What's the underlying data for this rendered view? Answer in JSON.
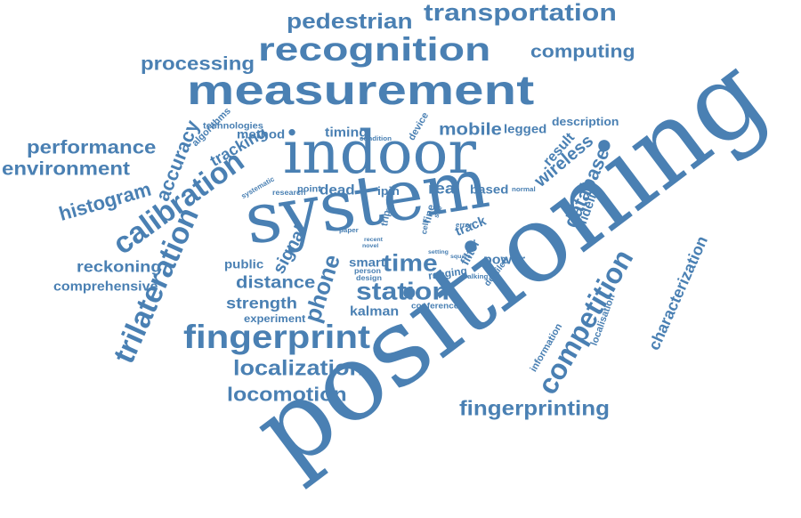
{
  "color": "#4a80b3",
  "words": [
    "positioning",
    "system",
    "indoor",
    "measurement",
    "recognition",
    "transportation",
    "pedestrian",
    "computing",
    "processing",
    "performance",
    "environment",
    "histogram",
    "accuracy",
    "calibration",
    "trilateration",
    "reckoning",
    "comprehensive",
    "fingerprint",
    "localization",
    "locomotion",
    "fingerprinting",
    "station",
    "time",
    "distance",
    "strength",
    "kalman",
    "phone",
    "signal",
    "public",
    "experiment",
    "competition",
    "characterization",
    "database",
    "wireless",
    "fidelity",
    "result",
    "description",
    "legged",
    "mobile",
    "timing",
    "method",
    "tracking",
    "algorithms",
    "technologies",
    "device",
    "condition",
    "dead",
    "point",
    "research",
    "systematic",
    "ipin",
    "real",
    "based",
    "normal",
    "smart",
    "power",
    "filter",
    "track",
    "ranging",
    "walking",
    "detailed",
    "conference",
    "information",
    "localisation",
    "design",
    "person",
    "paper",
    "recent",
    "novel",
    "error",
    "square",
    "setting",
    "trip",
    "area",
    "fine",
    "cell",
    "site"
  ]
}
